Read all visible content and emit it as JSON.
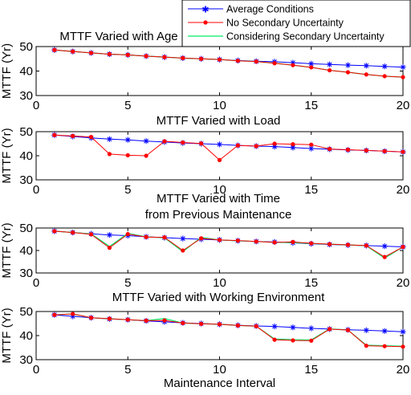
{
  "chart_data": [
    {
      "type": "line",
      "title": "MTTF Varied with Age",
      "ylabel": "MTTF (Yr)",
      "xlabel": "",
      "xlim": [
        0,
        20
      ],
      "ylim": [
        30,
        50
      ],
      "xticks": [
        0,
        5,
        10,
        15,
        20
      ],
      "yticks": [
        30,
        40,
        50
      ],
      "x": [
        1,
        2,
        3,
        4,
        5,
        6,
        7,
        8,
        9,
        10,
        11,
        12,
        13,
        14,
        15,
        16,
        17,
        18,
        19,
        20
      ],
      "series": [
        {
          "name": "Average Conditions",
          "values": [
            48.6,
            48.0,
            47.4,
            46.9,
            46.6,
            46.1,
            45.7,
            45.3,
            45.0,
            44.7,
            44.3,
            44.0,
            43.8,
            43.4,
            43.0,
            42.7,
            42.4,
            42.2,
            41.9,
            41.6
          ]
        },
        {
          "name": "No Secondary Uncertainty",
          "values": [
            48.6,
            48.0,
            47.4,
            46.9,
            46.6,
            46.1,
            45.7,
            45.3,
            45.0,
            44.7,
            44.2,
            43.9,
            43.2,
            42.4,
            41.5,
            40.3,
            39.5,
            38.6,
            37.9,
            37.5
          ]
        },
        {
          "name": "Considering Secondary Uncertainty",
          "values": [
            48.6,
            48.0,
            47.4,
            46.9,
            46.6,
            46.1,
            45.7,
            45.3,
            45.0,
            44.7,
            44.2,
            43.9,
            43.2,
            42.4,
            41.5,
            40.3,
            39.5,
            38.6,
            37.9,
            37.5
          ]
        }
      ]
    },
    {
      "type": "line",
      "title": "MTTF Varied with Load",
      "ylabel": "MTTF (Yr)",
      "xlabel": "",
      "xlim": [
        0,
        20
      ],
      "ylim": [
        30,
        50
      ],
      "xticks": [
        0,
        5,
        10,
        15,
        20
      ],
      "yticks": [
        30,
        40,
        50
      ],
      "x": [
        1,
        2,
        3,
        4,
        5,
        6,
        7,
        8,
        9,
        10,
        11,
        12,
        13,
        14,
        15,
        16,
        17,
        18,
        19,
        20
      ],
      "series": [
        {
          "name": "Average Conditions",
          "values": [
            48.6,
            48.0,
            47.4,
            46.9,
            46.6,
            46.1,
            45.7,
            45.3,
            45.0,
            44.7,
            44.3,
            44.0,
            43.8,
            43.4,
            43.0,
            42.7,
            42.4,
            42.2,
            41.9,
            41.6
          ]
        },
        {
          "name": "No Secondary Uncertainty",
          "values": [
            48.6,
            48.2,
            47.8,
            40.7,
            40.2,
            40.0,
            46.0,
            45.5,
            45.1,
            38.2,
            44.3,
            44.0,
            45.0,
            44.8,
            44.6,
            42.8,
            42.5,
            42.2,
            41.9,
            41.6
          ]
        }
      ]
    },
    {
      "type": "line",
      "title": "MTTF Varied with Time",
      "title_line2": "from Previous Maintenance",
      "ylabel": "MTTF (Yr)",
      "xlabel": "",
      "xlim": [
        0,
        20
      ],
      "ylim": [
        30,
        50
      ],
      "xticks": [
        0,
        5,
        10,
        15,
        20
      ],
      "yticks": [
        30,
        40,
        50
      ],
      "x": [
        1,
        2,
        3,
        4,
        5,
        6,
        7,
        8,
        9,
        10,
        11,
        12,
        13,
        14,
        15,
        16,
        17,
        18,
        19,
        20
      ],
      "series": [
        {
          "name": "Average Conditions",
          "values": [
            48.6,
            48.0,
            47.4,
            46.9,
            46.6,
            46.1,
            45.7,
            45.3,
            45.0,
            44.7,
            44.3,
            44.0,
            43.8,
            43.4,
            43.0,
            42.7,
            42.4,
            42.2,
            41.9,
            41.6
          ]
        },
        {
          "name": "No Secondary Uncertainty",
          "values": [
            48.6,
            48.0,
            47.2,
            41.2,
            47.3,
            46.0,
            45.8,
            40.0,
            45.4,
            44.7,
            44.4,
            44.0,
            43.6,
            43.8,
            43.2,
            42.8,
            42.5,
            42.2,
            37.1,
            41.6
          ]
        },
        {
          "name": "Considering Secondary Uncertainty",
          "values": [
            48.6,
            48.0,
            47.4,
            41.8,
            47.6,
            46.1,
            45.6,
            39.5,
            45.8,
            44.7,
            44.3,
            44.0,
            43.6,
            43.5,
            43.1,
            42.8,
            42.5,
            42.1,
            36.6,
            41.6
          ]
        }
      ]
    },
    {
      "type": "line",
      "title": "MTTF Varied with Working Environment",
      "ylabel": "MTTF (Yr)",
      "xlabel": "Maintenance Interval",
      "xlim": [
        0,
        20
      ],
      "ylim": [
        30,
        50
      ],
      "xticks": [
        0,
        5,
        10,
        15,
        20
      ],
      "yticks": [
        30,
        40,
        50
      ],
      "x": [
        1,
        2,
        3,
        4,
        5,
        6,
        7,
        8,
        9,
        10,
        11,
        12,
        13,
        14,
        15,
        16,
        17,
        18,
        19,
        20
      ],
      "series": [
        {
          "name": "Average Conditions",
          "values": [
            48.6,
            48.0,
            47.4,
            46.9,
            46.6,
            46.1,
            45.7,
            45.3,
            45.0,
            44.7,
            44.3,
            44.0,
            43.8,
            43.4,
            43.0,
            42.7,
            42.4,
            42.2,
            41.9,
            41.6
          ]
        },
        {
          "name": "No Secondary Uncertainty",
          "values": [
            48.6,
            49.0,
            47.4,
            47.0,
            46.6,
            46.2,
            46.3,
            45.2,
            44.9,
            44.7,
            44.2,
            43.9,
            38.3,
            38.0,
            37.9,
            42.7,
            42.3,
            35.8,
            35.6,
            35.4
          ]
        },
        {
          "name": "Considering Secondary Uncertainty",
          "values": [
            48.6,
            49.0,
            47.4,
            47.0,
            46.6,
            46.2,
            47.1,
            45.2,
            44.9,
            44.7,
            44.2,
            43.9,
            38.6,
            38.3,
            38.2,
            42.8,
            42.3,
            36.0,
            35.8,
            35.6
          ]
        }
      ]
    }
  ],
  "legend": {
    "position": "top-right",
    "entries": [
      {
        "label": "Average Conditions",
        "color": "#0000ff",
        "marker": "star"
      },
      {
        "label": "No Secondary Uncertainty",
        "color": "#ff0000",
        "marker": "dot"
      },
      {
        "label": "Considering Secondary Uncertainty",
        "color": "#00ee66",
        "marker": "none"
      }
    ]
  },
  "colors": {
    "blue": "#0000ff",
    "red": "#ff0000",
    "green": "#00ee66"
  }
}
